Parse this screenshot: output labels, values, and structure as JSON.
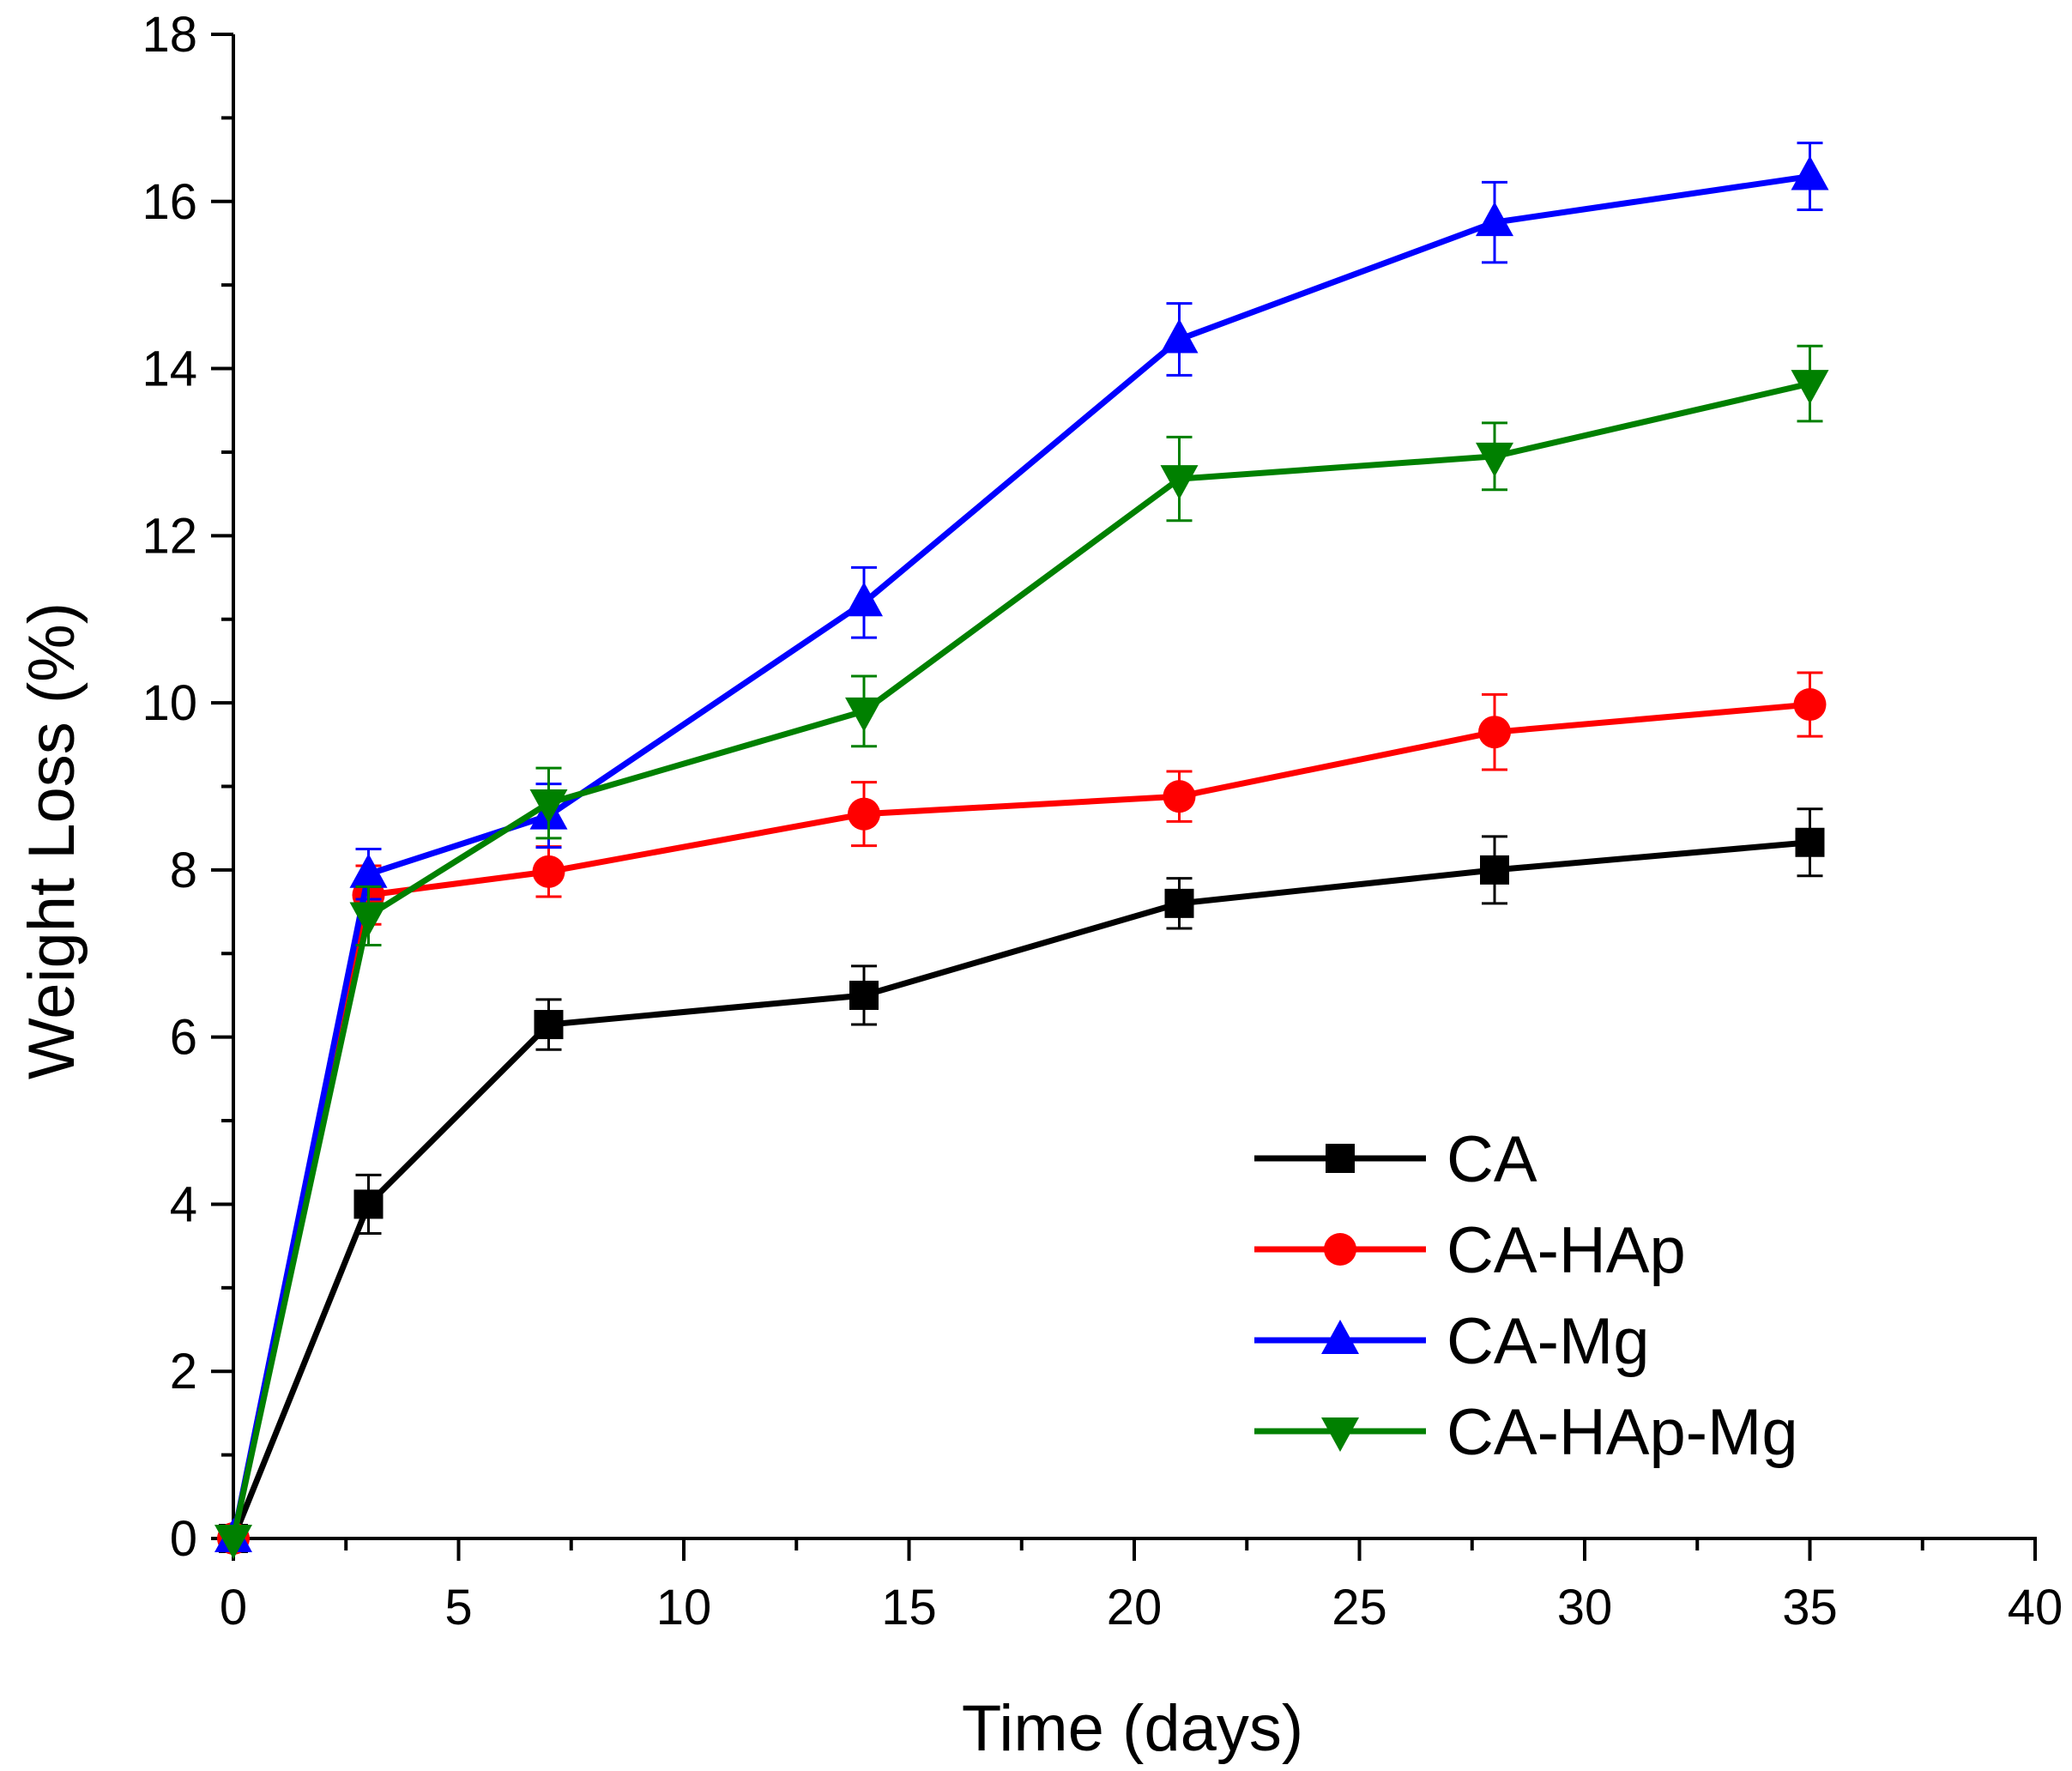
{
  "chart_data": {
    "type": "line",
    "title": "",
    "xlabel": "Time (days)",
    "ylabel": "Weight Loss (%)",
    "xlim": [
      0,
      40
    ],
    "ylim": [
      0,
      18
    ],
    "xticks": [
      0,
      5,
      10,
      15,
      20,
      25,
      30,
      35,
      40
    ],
    "yticks": [
      0,
      2,
      4,
      6,
      8,
      10,
      12,
      14,
      16,
      18
    ],
    "x": [
      0,
      3,
      7,
      14,
      21,
      28,
      35
    ],
    "grid": false,
    "legend_position": "bottom-right",
    "series": [
      {
        "name": "CA",
        "color": "#000000",
        "marker": "square",
        "values": [
          0,
          4.0,
          6.15,
          6.5,
          7.6,
          8.0,
          8.33
        ],
        "errors": [
          0,
          0.35,
          0.3,
          0.35,
          0.3,
          0.4,
          0.4
        ]
      },
      {
        "name": "CA-HAp",
        "color": "#ff0000",
        "marker": "circle",
        "values": [
          0,
          7.7,
          7.98,
          8.67,
          8.88,
          9.65,
          9.98
        ],
        "errors": [
          0,
          0.35,
          0.3,
          0.38,
          0.3,
          0.45,
          0.38
        ]
      },
      {
        "name": "CA-Mg",
        "color": "#0000ff",
        "marker": "triangle-up",
        "values": [
          0,
          7.95,
          8.65,
          11.2,
          14.35,
          15.75,
          16.3
        ],
        "errors": [
          0,
          0.3,
          0.38,
          0.42,
          0.43,
          0.48,
          0.4
        ]
      },
      {
        "name": "CA-HAp-Mg",
        "color": "#008000",
        "marker": "triangle-down",
        "values": [
          0,
          7.45,
          8.8,
          9.9,
          12.68,
          12.95,
          13.82
        ],
        "errors": [
          0,
          0.35,
          0.42,
          0.42,
          0.5,
          0.4,
          0.45
        ]
      }
    ]
  }
}
